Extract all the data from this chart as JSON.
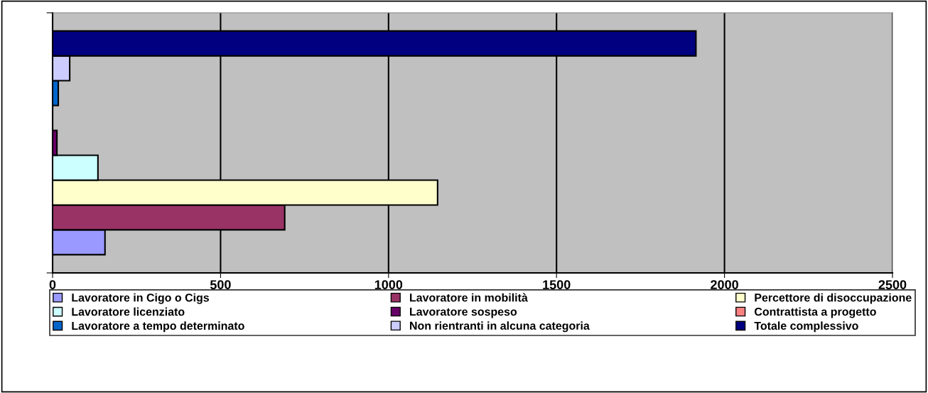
{
  "chart_data": {
    "type": "bar",
    "orientation": "horizontal",
    "categories": [
      null
    ],
    "series": [
      {
        "name": "Lavoratore in Cigo o Cigs",
        "color": "#9999ff",
        "values": [
          156
        ]
      },
      {
        "name": "Lavoratore in mobilità",
        "color": "#993366",
        "values": [
          691
        ]
      },
      {
        "name": "Percettore di disoccupazione",
        "color": "#ffffcc",
        "values": [
          1146
        ]
      },
      {
        "name": "Lavoratore licenziato",
        "color": "#ccffff",
        "values": [
          135
        ]
      },
      {
        "name": "Lavoratore sospeso",
        "color": "#660066",
        "values": [
          13
        ]
      },
      {
        "name": "Contrattista a progetto",
        "color": "#ff8080",
        "values": [
          0
        ]
      },
      {
        "name": "Lavoratore a tempo determinato",
        "color": "#0066cc",
        "values": [
          17
        ]
      },
      {
        "name": "Non rientranti in alcuna categoria",
        "color": "#ccccff",
        "values": [
          51
        ]
      },
      {
        "name": "Totale complessivo",
        "color": "#000080",
        "values": [
          1915
        ]
      }
    ],
    "xlim": [
      0,
      2500
    ],
    "xticks": [
      0,
      500,
      1000,
      1500,
      2000,
      2500
    ],
    "grid": "x",
    "legend": "bottom"
  }
}
